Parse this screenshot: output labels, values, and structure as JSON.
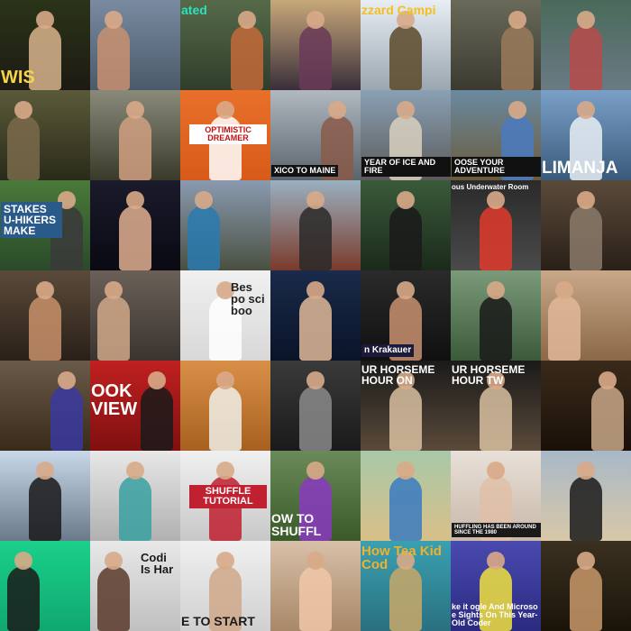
{
  "grid": {
    "columns": 7,
    "rows": 7
  },
  "tiles": [
    {
      "name": "wolf-costume-thumb",
      "bg": [
        "#2a3418",
        "#1d1a12"
      ],
      "fig": "#d8b48c",
      "cap": "WIS",
      "capColor": "#f7d34a",
      "capBg": "",
      "capPos": "bl",
      "capSize": 20,
      "figPos": "c"
    },
    {
      "name": "boy-sleeping-bag-thumb",
      "bg": [
        "#7a8aa0",
        "#4a5a6a"
      ],
      "fig": "#c89070",
      "cap": "",
      "capColor": "#fff",
      "capBg": "",
      "capPos": "tl",
      "capSize": 12,
      "figPos": "l"
    },
    {
      "name": "tent-camping-thumb",
      "bg": [
        "#566a4a",
        "#2f3d2a"
      ],
      "fig": "#c46a38",
      "cap": "ated",
      "capColor": "#2ee0c0",
      "capBg": "",
      "capPos": "tl",
      "capSize": 14,
      "figPos": "r"
    },
    {
      "name": "hiker-mountain-thumb",
      "bg": [
        "#c7a87a",
        "#3a2e3a"
      ],
      "fig": "#6a3a58",
      "cap": "",
      "capColor": "#fff",
      "capBg": "",
      "capPos": "tl",
      "capSize": 12,
      "figPos": "c"
    },
    {
      "name": "blizzard-camping-thumb",
      "bg": [
        "#e8eef4",
        "#9aa6b0"
      ],
      "fig": "#5a4a2a",
      "cap": "zzard Campi",
      "capColor": "#f2c020",
      "capBg": "",
      "capPos": "tl",
      "capSize": 14,
      "figPos": "c"
    },
    {
      "name": "campfire-woods-thumb",
      "bg": [
        "#6a6a5a",
        "#3a3a30"
      ],
      "fig": "#9a7a5a",
      "cap": "",
      "capColor": "#fff",
      "capBg": "",
      "capPos": "tl",
      "capSize": 12,
      "figPos": "r"
    },
    {
      "name": "lake-camp-thumb",
      "bg": [
        "#4a6a5a",
        "#6a7a84"
      ],
      "fig": "#b84a4a",
      "cap": "",
      "capColor": "#fff",
      "capBg": "",
      "capPos": "tl",
      "capSize": 12,
      "figPos": "c"
    },
    {
      "name": "woman-shelter-thumb",
      "bg": [
        "#5a5a3a",
        "#2a2a1a"
      ],
      "fig": "#7a6a4a",
      "cap": "",
      "capColor": "#fff",
      "capBg": "",
      "capPos": "tl",
      "capSize": 12,
      "figPos": "l"
    },
    {
      "name": "banjo-player-thumb",
      "bg": [
        "#8a8a7a",
        "#3a3a2a"
      ],
      "fig": "#d0a080",
      "cap": "",
      "capColor": "#fff",
      "capBg": "",
      "capPos": "tl",
      "capSize": 12,
      "figPos": "c"
    },
    {
      "name": "optimistic-dreamer-thumb",
      "bg": [
        "#e8702a",
        "#d85a1a"
      ],
      "fig": "#ffffff",
      "cap": "OPTIMISTIC DREAMER",
      "capColor": "#c01010",
      "capBg": "#ffffff",
      "capPos": "c",
      "capSize": 9,
      "figPos": "c"
    },
    {
      "name": "mexico-to-maine-thumb",
      "bg": [
        "#b0b8c0",
        "#5a646c"
      ],
      "fig": "#8a5a4a",
      "cap": "XICO TO MAINE",
      "capColor": "#ffffff",
      "capBg": "#111111",
      "capPos": "bl",
      "capSize": 9,
      "figPos": "r"
    },
    {
      "name": "year-of-ice-thumb",
      "bg": [
        "#8aa0b4",
        "#5a5a5a"
      ],
      "fig": "#d8d0c0",
      "cap": "YEAR OF ICE AND FIRE",
      "capColor": "#ffffff",
      "capBg": "#111111",
      "capPos": "bl",
      "capSize": 9,
      "figPos": "c"
    },
    {
      "name": "choose-adventure-thumb",
      "bg": [
        "#6a8aa0",
        "#6a5a3a"
      ],
      "fig": "#4a7ac0",
      "cap": "OOSE YOUR ADVENTURE",
      "capColor": "#ffffff",
      "capBg": "#111111",
      "capPos": "bl",
      "capSize": 9,
      "figPos": "r"
    },
    {
      "name": "kilimanjaro-thumb",
      "bg": [
        "#7aa0c8",
        "#3a5a7a"
      ],
      "fig": "#e8eef4",
      "cap": "LIMANJA",
      "capColor": "#ffffff",
      "capBg": "",
      "capPos": "bl",
      "capSize": 19,
      "figPos": "c"
    },
    {
      "name": "high-stakes-hikers-thumb",
      "bg": [
        "#4a7a3a",
        "#2a4a2a"
      ],
      "fig": "#3a3a3a",
      "cap": "STAKES U-HIKERS MAKE",
      "capColor": "#ffffff",
      "capBg": "#2a5a8a",
      "capPos": "l",
      "capSize": 12,
      "figPos": "r"
    },
    {
      "name": "surprised-face-thumb",
      "bg": [
        "#1a1a2a",
        "#0a0a14"
      ],
      "fig": "#e0b090",
      "cap": "",
      "capColor": "#fff",
      "capBg": "",
      "capPos": "tl",
      "capSize": 12,
      "figPos": "c"
    },
    {
      "name": "rocky-peaks-thumb",
      "bg": [
        "#8a9ab0",
        "#4a5040"
      ],
      "fig": "#2a7ab0",
      "cap": "",
      "capColor": "#fff",
      "capBg": "",
      "capPos": "tl",
      "capSize": 12,
      "figPos": "l"
    },
    {
      "name": "train-ride-thumb",
      "bg": [
        "#9ab0c0",
        "#7a3a2a"
      ],
      "fig": "#2a2a2a",
      "cap": "",
      "capColor": "#fff",
      "capBg": "",
      "capPos": "tl",
      "capSize": 12,
      "figPos": "c"
    },
    {
      "name": "forest-view-thumb",
      "bg": [
        "#3a5a3a",
        "#1a2a1a"
      ],
      "fig": "#1a1a1a",
      "cap": "",
      "capColor": "#fff",
      "capBg": "",
      "capPos": "tl",
      "capSize": 12,
      "figPos": "c"
    },
    {
      "name": "underwater-room-thumb",
      "bg": [
        "#2a2a2a",
        "#4a4a4a"
      ],
      "fig": "#e03a2a",
      "cap": "ous Underwater Room",
      "capColor": "#ffffff",
      "capBg": "",
      "capPos": "tl",
      "capSize": 8,
      "figPos": "c"
    },
    {
      "name": "abandoned-house-thumb",
      "bg": [
        "#5a4a3a",
        "#2a2018"
      ],
      "fig": "#8a7a6a",
      "cap": "",
      "capColor": "#fff",
      "capBg": "",
      "capPos": "tl",
      "capSize": 12,
      "figPos": "c"
    },
    {
      "name": "bearded-man-thumb",
      "bg": [
        "#5a4a3a",
        "#2a2018"
      ],
      "fig": "#c8906a",
      "cap": "",
      "capColor": "#fff",
      "capBg": "",
      "capPos": "tl",
      "capSize": 12,
      "figPos": "c"
    },
    {
      "name": "book-review-woman-thumb",
      "bg": [
        "#6a6058",
        "#3a3430"
      ],
      "fig": "#d0a888",
      "cap": "",
      "capColor": "#fff",
      "capBg": "",
      "capPos": "tl",
      "capSize": 12,
      "figPos": "l"
    },
    {
      "name": "best-books-thumb",
      "bg": [
        "#f0f0f0",
        "#d8d8d8"
      ],
      "fig": "#ffffff",
      "cap": "Bes po sci boo",
      "capColor": "#222222",
      "capBg": "",
      "capPos": "r",
      "capSize": 13,
      "figPos": "c"
    },
    {
      "name": "bill-bryson-thumb",
      "bg": [
        "#1a2a4a",
        "#0a1428"
      ],
      "fig": "#e0b898",
      "cap": "",
      "capColor": "#fff",
      "capBg": "",
      "capPos": "tl",
      "capSize": 12,
      "figPos": "c"
    },
    {
      "name": "jon-krakauer-thumb",
      "bg": [
        "#2a2a2a",
        "#101010"
      ],
      "fig": "#c89070",
      "cap": "n Krakauer",
      "capColor": "#ffffff",
      "capBg": "#1a1a3a",
      "capPos": "bl",
      "capSize": 10,
      "figPos": "c"
    },
    {
      "name": "magic-bus-thumb",
      "bg": [
        "#7a9a7a",
        "#3a5a3a"
      ],
      "fig": "#1a1a1a",
      "cap": "",
      "capColor": "#fff",
      "capBg": "",
      "capPos": "tl",
      "capSize": 12,
      "figPos": "c"
    },
    {
      "name": "into-the-wild-thumb",
      "bg": [
        "#c8a888",
        "#8a6848"
      ],
      "fig": "#e0b898",
      "cap": "",
      "capColor": "#fff",
      "capBg": "",
      "capPos": "tl",
      "capSize": 12,
      "figPos": "l"
    },
    {
      "name": "man-with-book-thumb",
      "bg": [
        "#6a5a4a",
        "#3a2a1a"
      ],
      "fig": "#3a3aa0",
      "cap": "",
      "capColor": "#fff",
      "capBg": "",
      "capPos": "tl",
      "capSize": 12,
      "figPos": "r"
    },
    {
      "name": "book-review-thumb",
      "bg": [
        "#c02020",
        "#801010"
      ],
      "fig": "#1a1a1a",
      "cap": "OOK VIEW",
      "capColor": "#ffffff",
      "capBg": "",
      "capPos": "l",
      "capSize": 20,
      "figPos": "r"
    },
    {
      "name": "nietzsche-cartoon-thumb",
      "bg": [
        "#d89048",
        "#a86020"
      ],
      "fig": "#f0f0e8",
      "cap": "",
      "capColor": "#fff",
      "capBg": "",
      "capPos": "tl",
      "capSize": 12,
      "figPos": "c"
    },
    {
      "name": "nietzsche-portrait-thumb",
      "bg": [
        "#3a3a3a",
        "#1a1a1a"
      ],
      "fig": "#8a8a8a",
      "cap": "",
      "capColor": "#fff",
      "capBg": "",
      "capPos": "tl",
      "capSize": 12,
      "figPos": "c"
    },
    {
      "name": "four-horsemen-1-thumb",
      "bg": [
        "#1a1a1a",
        "#5a4a3a"
      ],
      "fig": "#d8c0a0",
      "cap": "UR HORSEME HOUR ON",
      "capColor": "#ffffff",
      "capBg": "",
      "capPos": "tl",
      "capSize": 12,
      "figPos": "c"
    },
    {
      "name": "four-horsemen-2-thumb",
      "bg": [
        "#1a1a1a",
        "#5a4a3a"
      ],
      "fig": "#d8c0a0",
      "cap": "UR HORSEME HOUR TW",
      "capColor": "#ffffff",
      "capBg": "",
      "capPos": "tl",
      "capSize": 12,
      "figPos": "c"
    },
    {
      "name": "library-interview-thumb",
      "bg": [
        "#3a2a1a",
        "#1a1008"
      ],
      "fig": "#c8a888",
      "cap": "",
      "capColor": "#fff",
      "capBg": "",
      "capPos": "tl",
      "capSize": 12,
      "figPos": "r"
    },
    {
      "name": "dancers-beach-thumb",
      "bg": [
        "#c8d8e8",
        "#6a7a8a"
      ],
      "fig": "#1a1a1a",
      "cap": "",
      "capColor": "#fff",
      "capBg": "",
      "capPos": "tl",
      "capSize": 12,
      "figPos": "c"
    },
    {
      "name": "dancer-white-wall-thumb",
      "bg": [
        "#e8e8e8",
        "#b0b0b0"
      ],
      "fig": "#3aa0a0",
      "cap": "",
      "capColor": "#fff",
      "capBg": "",
      "capPos": "tl",
      "capSize": 12,
      "figPos": "c"
    },
    {
      "name": "shuffle-tutorial-thumb",
      "bg": [
        "#f0f0f0",
        "#c8c8c8"
      ],
      "fig": "#c02030",
      "cap": "SHUFFLE TUTORIAL",
      "capColor": "#ffffff",
      "capBg": "#c02030",
      "capPos": "c",
      "capSize": 11,
      "figPos": "c"
    },
    {
      "name": "how-to-shuffle-thumb",
      "bg": [
        "#6a8a5a",
        "#3a5a2a"
      ],
      "fig": "#8a3ac0",
      "cap": "OW TO SHUFFL",
      "capColor": "#ffffff",
      "capBg": "",
      "capPos": "bl",
      "capSize": 14,
      "figPos": "c"
    },
    {
      "name": "shuffle-duo-thumb",
      "bg": [
        "#a8c8a8",
        "#d8c088"
      ],
      "fig": "#3a7ac0",
      "cap": "",
      "capColor": "#fff",
      "capBg": "",
      "capPos": "tl",
      "capSize": 12,
      "figPos": "c"
    },
    {
      "name": "shuffling-history-thumb",
      "bg": [
        "#e8e0d8",
        "#c8b8a8"
      ],
      "fig": "#e0c0a8",
      "cap": "HUFFLING HAS BEEN AROUND SINCE THE 1980",
      "capColor": "#ffffff",
      "capBg": "#1a1a1a",
      "capPos": "bl",
      "capSize": 6,
      "figPos": "c"
    },
    {
      "name": "dancer-desert-thumb",
      "bg": [
        "#a8b8c8",
        "#d8c8a8"
      ],
      "fig": "#1a1a1a",
      "cap": "",
      "capColor": "#fff",
      "capBg": "",
      "capPos": "tl",
      "capSize": 12,
      "figPos": "c"
    },
    {
      "name": "green-screen-thumb",
      "bg": [
        "#1ad08a",
        "#10a870"
      ],
      "fig": "#1a1a1a",
      "cap": "",
      "capColor": "#fff",
      "capBg": "",
      "capPos": "tl",
      "capSize": 12,
      "figPos": "l"
    },
    {
      "name": "coding-is-hard-thumb",
      "bg": [
        "#e8e8e8",
        "#c0c0c0"
      ],
      "fig": "#5a3a2a",
      "cap": "Codi Is Har",
      "capColor": "#1a1a1a",
      "capBg": "",
      "capPos": "r",
      "capSize": 13,
      "figPos": "l"
    },
    {
      "name": "where-to-start-thumb",
      "bg": [
        "#f0f0f0",
        "#d0d0d0"
      ],
      "fig": "#d0a888",
      "cap": "E TO START",
      "capColor": "#1a1a1a",
      "capBg": "",
      "capPos": "bl",
      "capSize": 14,
      "figPos": "c"
    },
    {
      "name": "woman-surprised-thumb",
      "bg": [
        "#d8c0a8",
        "#a88868"
      ],
      "fig": "#f0c8a8",
      "cap": "",
      "capColor": "#fff",
      "capBg": "",
      "capPos": "tl",
      "capSize": 12,
      "figPos": "c"
    },
    {
      "name": "teach-kids-code-thumb",
      "bg": [
        "#3aa0b0",
        "#2a7080"
      ],
      "fig": "#c8a868",
      "cap": "How Tea Kid Cod",
      "capColor": "#f0b030",
      "capBg": "",
      "capPos": "tl",
      "capSize": 15,
      "figPos": "c"
    },
    {
      "name": "google-microsoft-coder-thumb",
      "bg": [
        "#4a4ab0",
        "#2a2a80"
      ],
      "fig": "#f0e040",
      "cap": "ke it ogle And Microso e Sights On This Year-Old Coder",
      "capColor": "#ffffff",
      "capBg": "",
      "capPos": "bl",
      "capSize": 9,
      "figPos": "c"
    },
    {
      "name": "hat-man-thumb",
      "bg": [
        "#3a3020",
        "#1a1408"
      ],
      "fig": "#c89868",
      "cap": "",
      "capColor": "#fff",
      "capBg": "",
      "capPos": "tl",
      "capSize": 12,
      "figPos": "c"
    }
  ]
}
